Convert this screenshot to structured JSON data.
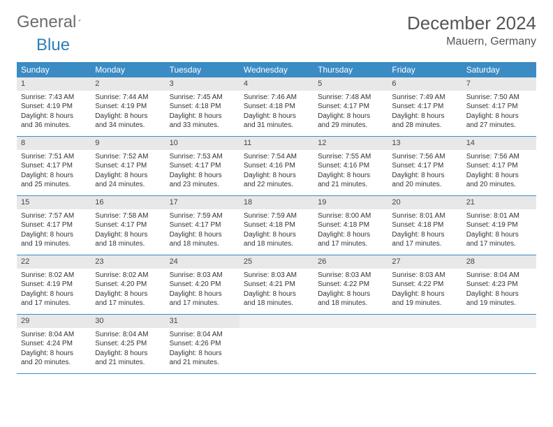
{
  "logo": {
    "word1": "General",
    "word2": "Blue"
  },
  "title": "December 2024",
  "location": "Mauern, Germany",
  "colors": {
    "header_bg": "#3b8bc4",
    "header_text": "#ffffff",
    "daynum_bg": "#e8e8e8",
    "text": "#333333",
    "logo_gray": "#6b6b6b",
    "logo_blue": "#2c7fb8",
    "border": "#3b8bc4"
  },
  "weekdays": [
    "Sunday",
    "Monday",
    "Tuesday",
    "Wednesday",
    "Thursday",
    "Friday",
    "Saturday"
  ],
  "days": [
    {
      "n": 1,
      "sr": "7:43 AM",
      "ss": "4:19 PM",
      "dl": "8 hours and 36 minutes."
    },
    {
      "n": 2,
      "sr": "7:44 AM",
      "ss": "4:19 PM",
      "dl": "8 hours and 34 minutes."
    },
    {
      "n": 3,
      "sr": "7:45 AM",
      "ss": "4:18 PM",
      "dl": "8 hours and 33 minutes."
    },
    {
      "n": 4,
      "sr": "7:46 AM",
      "ss": "4:18 PM",
      "dl": "8 hours and 31 minutes."
    },
    {
      "n": 5,
      "sr": "7:48 AM",
      "ss": "4:17 PM",
      "dl": "8 hours and 29 minutes."
    },
    {
      "n": 6,
      "sr": "7:49 AM",
      "ss": "4:17 PM",
      "dl": "8 hours and 28 minutes."
    },
    {
      "n": 7,
      "sr": "7:50 AM",
      "ss": "4:17 PM",
      "dl": "8 hours and 27 minutes."
    },
    {
      "n": 8,
      "sr": "7:51 AM",
      "ss": "4:17 PM",
      "dl": "8 hours and 25 minutes."
    },
    {
      "n": 9,
      "sr": "7:52 AM",
      "ss": "4:17 PM",
      "dl": "8 hours and 24 minutes."
    },
    {
      "n": 10,
      "sr": "7:53 AM",
      "ss": "4:17 PM",
      "dl": "8 hours and 23 minutes."
    },
    {
      "n": 11,
      "sr": "7:54 AM",
      "ss": "4:16 PM",
      "dl": "8 hours and 22 minutes."
    },
    {
      "n": 12,
      "sr": "7:55 AM",
      "ss": "4:16 PM",
      "dl": "8 hours and 21 minutes."
    },
    {
      "n": 13,
      "sr": "7:56 AM",
      "ss": "4:17 PM",
      "dl": "8 hours and 20 minutes."
    },
    {
      "n": 14,
      "sr": "7:56 AM",
      "ss": "4:17 PM",
      "dl": "8 hours and 20 minutes."
    },
    {
      "n": 15,
      "sr": "7:57 AM",
      "ss": "4:17 PM",
      "dl": "8 hours and 19 minutes."
    },
    {
      "n": 16,
      "sr": "7:58 AM",
      "ss": "4:17 PM",
      "dl": "8 hours and 18 minutes."
    },
    {
      "n": 17,
      "sr": "7:59 AM",
      "ss": "4:17 PM",
      "dl": "8 hours and 18 minutes."
    },
    {
      "n": 18,
      "sr": "7:59 AM",
      "ss": "4:18 PM",
      "dl": "8 hours and 18 minutes."
    },
    {
      "n": 19,
      "sr": "8:00 AM",
      "ss": "4:18 PM",
      "dl": "8 hours and 17 minutes."
    },
    {
      "n": 20,
      "sr": "8:01 AM",
      "ss": "4:18 PM",
      "dl": "8 hours and 17 minutes."
    },
    {
      "n": 21,
      "sr": "8:01 AM",
      "ss": "4:19 PM",
      "dl": "8 hours and 17 minutes."
    },
    {
      "n": 22,
      "sr": "8:02 AM",
      "ss": "4:19 PM",
      "dl": "8 hours and 17 minutes."
    },
    {
      "n": 23,
      "sr": "8:02 AM",
      "ss": "4:20 PM",
      "dl": "8 hours and 17 minutes."
    },
    {
      "n": 24,
      "sr": "8:03 AM",
      "ss": "4:20 PM",
      "dl": "8 hours and 17 minutes."
    },
    {
      "n": 25,
      "sr": "8:03 AM",
      "ss": "4:21 PM",
      "dl": "8 hours and 18 minutes."
    },
    {
      "n": 26,
      "sr": "8:03 AM",
      "ss": "4:22 PM",
      "dl": "8 hours and 18 minutes."
    },
    {
      "n": 27,
      "sr": "8:03 AM",
      "ss": "4:22 PM",
      "dl": "8 hours and 19 minutes."
    },
    {
      "n": 28,
      "sr": "8:04 AM",
      "ss": "4:23 PM",
      "dl": "8 hours and 19 minutes."
    },
    {
      "n": 29,
      "sr": "8:04 AM",
      "ss": "4:24 PM",
      "dl": "8 hours and 20 minutes."
    },
    {
      "n": 30,
      "sr": "8:04 AM",
      "ss": "4:25 PM",
      "dl": "8 hours and 21 minutes."
    },
    {
      "n": 31,
      "sr": "8:04 AM",
      "ss": "4:26 PM",
      "dl": "8 hours and 21 minutes."
    }
  ],
  "labels": {
    "sunrise": "Sunrise:",
    "sunset": "Sunset:",
    "daylight": "Daylight:"
  },
  "layout": {
    "start_weekday": 0,
    "total_cells": 35
  }
}
